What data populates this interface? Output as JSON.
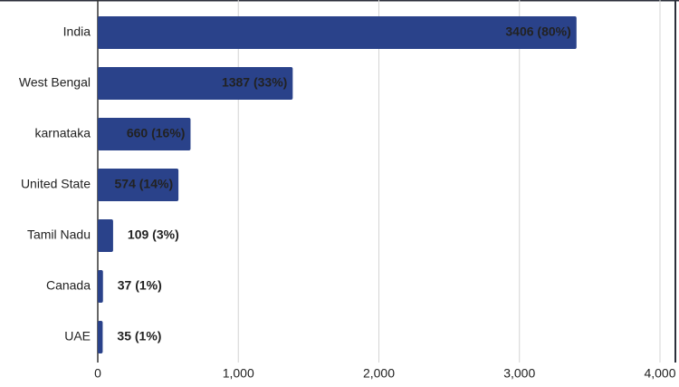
{
  "chart_data": {
    "type": "bar",
    "orientation": "horizontal",
    "categories": [
      "India",
      "West Bengal",
      "karnataka",
      "United State",
      "Tamil Nadu",
      "Canada",
      "UAE"
    ],
    "values": [
      3406,
      1387,
      660,
      574,
      109,
      37,
      35
    ],
    "value_labels": [
      "3406 (80%)",
      "1387 (33%)",
      "660 (16%)",
      "574 (14%)",
      "109 (3%)",
      "37 (1%)",
      "35 (1%)"
    ],
    "value_label_colors": [
      "#ffffff",
      "#ffffff",
      "#ffffff",
      "#e8a33a",
      "#111111",
      "#e8a33a",
      "#e8a33a"
    ],
    "color": "#2a428a",
    "xlim": [
      0,
      4000
    ],
    "xticks": [
      0,
      {
        "value": 1000,
        "label": "1,000"
      },
      {
        "value": 2000,
        "label": "2,000"
      },
      {
        "value": 3000,
        "label": "3,000"
      },
      {
        "value": 4000,
        "label": "4,000"
      }
    ],
    "grid": true
  }
}
